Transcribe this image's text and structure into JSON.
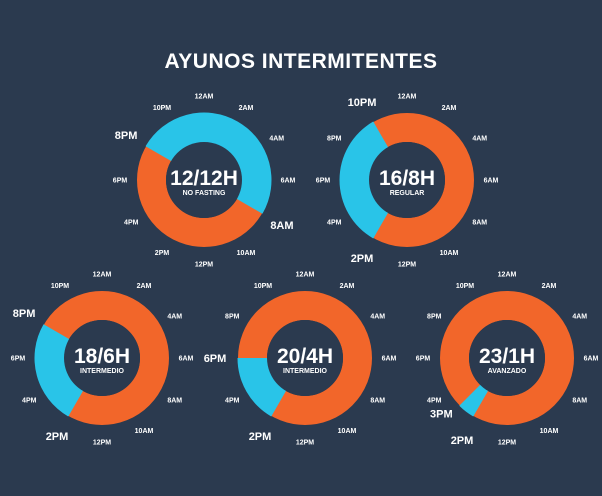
{
  "title": "AYUNOS INTERMITENTES",
  "colors": {
    "background": "#2b3a4f",
    "fasting": "#f2662a",
    "eating": "#29c4e8",
    "label": "#ffffff"
  },
  "hour_labels": [
    "12AM",
    "2AM",
    "4AM",
    "6AM",
    "8AM",
    "10AM",
    "12PM",
    "2PM",
    "4PM",
    "6PM",
    "8PM",
    "10PM"
  ],
  "chart_data": {
    "type": "donut",
    "charts": [
      {
        "ratio": "12/12H",
        "level": "NO FASTING",
        "eating_window": {
          "start": "8PM",
          "end": "8AM",
          "hours": 12
        },
        "fasting_hours": 12,
        "emphasized_labels": [
          "8PM",
          "8AM"
        ]
      },
      {
        "ratio": "16/8H",
        "level": "REGULAR",
        "eating_window": {
          "start": "2PM",
          "end": "10PM",
          "hours": 8
        },
        "fasting_hours": 16,
        "emphasized_labels": [
          "10PM",
          "2PM"
        ]
      },
      {
        "ratio": "18/6H",
        "level": "INTERMEDIO",
        "eating_window": {
          "start": "2PM",
          "end": "8PM",
          "hours": 6
        },
        "fasting_hours": 18,
        "emphasized_labels": [
          "8PM",
          "2PM"
        ]
      },
      {
        "ratio": "20/4H",
        "level": "INTERMEDIO",
        "eating_window": {
          "start": "2PM",
          "end": "6PM",
          "hours": 4
        },
        "fasting_hours": 20,
        "emphasized_labels": [
          "6PM",
          "2PM"
        ]
      },
      {
        "ratio": "23/1H",
        "level": "AVANZADO",
        "eating_window": {
          "start": "2PM",
          "end": "3PM",
          "hours": 1
        },
        "fasting_hours": 23,
        "emphasized_labels": [
          "3PM",
          "2PM"
        ],
        "extra_labels": [
          "3PM"
        ]
      }
    ]
  }
}
